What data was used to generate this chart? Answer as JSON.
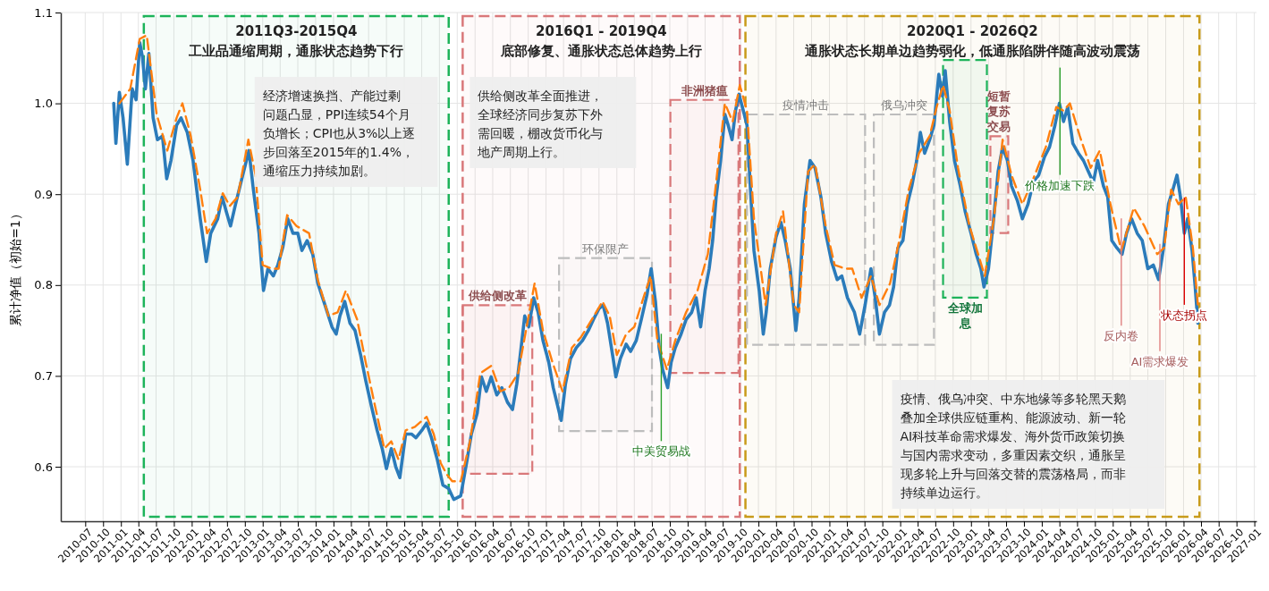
{
  "chart_data": {
    "type": "line",
    "ylabel": "累计净值（初始=1）",
    "xlim": [
      "2010-02-25",
      "2027-01-12"
    ],
    "ylim": [
      0.54,
      1.1
    ],
    "xticks": [
      "2010-07",
      "2010-10",
      "2011-01",
      "2011-04",
      "2011-07",
      "2011-10",
      "2012-01",
      "2012-04",
      "2012-07",
      "2012-10",
      "2013-01",
      "2013-04",
      "2013-07",
      "2013-10",
      "2014-01",
      "2014-04",
      "2014-07",
      "2014-10",
      "2015-01",
      "2015-04",
      "2015-07",
      "2015-10",
      "2016-01",
      "2016-04",
      "2016-07",
      "2016-10",
      "2017-01",
      "2017-04",
      "2017-07",
      "2017-10",
      "2018-01",
      "2018-04",
      "2018-07",
      "2018-10",
      "2019-01",
      "2019-04",
      "2019-07",
      "2019-10",
      "2020-01",
      "2020-04",
      "2020-07",
      "2020-10",
      "2021-01",
      "2021-04",
      "2021-07",
      "2021-10",
      "2022-01",
      "2022-04",
      "2022-07",
      "2022-10",
      "2023-01",
      "2023-04",
      "2023-07",
      "2023-10",
      "2024-01",
      "2024-04",
      "2024-07",
      "2024-10",
      "2025-01",
      "2025-04",
      "2025-07",
      "2025-10",
      "2026-01",
      "2026-04",
      "2026-07",
      "2026-10",
      "2027-01"
    ],
    "yticks": [
      0.6,
      0.7,
      0.8,
      0.9,
      {
        "value": 1,
        "label": "1.0"
      },
      1.1
    ],
    "grid": true,
    "series": [
      {
        "color": "#2b7bba",
        "line_style": "solid",
        "x": [
          "2010-11-25",
          "2010-12-06",
          "2010-12-24",
          "2011-01-12",
          "2011-02-03",
          "2011-02-28",
          "2011-03-20",
          "2011-04-08",
          "2011-04-22",
          "2011-05-07",
          "2011-05-25",
          "2011-06-16",
          "2011-07-08",
          "2011-08-03",
          "2011-08-25",
          "2011-09-16",
          "2011-10-15",
          "2011-11-07",
          "2011-12-09",
          "2012-01-08",
          "2012-02-14",
          "2012-03-16",
          "2012-04-08",
          "2012-05-14",
          "2012-06-06",
          "2012-06-27",
          "2012-07-19",
          "2012-08-14",
          "2012-09-20",
          "2012-10-22",
          "2012-11-14",
          "2012-12-13",
          "2013-01-05",
          "2013-01-28",
          "2013-02-25",
          "2013-03-20",
          "2013-04-15",
          "2013-05-10",
          "2013-06-06",
          "2013-07-01",
          "2013-07-22",
          "2013-08-18",
          "2013-09-16",
          "2013-10-12",
          "2013-11-18",
          "2013-12-24",
          "2014-01-15",
          "2014-02-03",
          "2014-02-28",
          "2014-03-27",
          "2014-04-22",
          "2014-05-21",
          "2014-06-16",
          "2014-07-15",
          "2014-08-14",
          "2014-09-09",
          "2014-10-01",
          "2014-10-26",
          "2014-11-18",
          "2014-12-09",
          "2015-01-08",
          "2015-02-07",
          "2015-03-02",
          "2015-04-01",
          "2015-04-26",
          "2015-05-21",
          "2015-06-20",
          "2015-07-19",
          "2015-08-18",
          "2015-09-13",
          "2015-10-19",
          "2015-11-18",
          "2015-12-13",
          "2016-01-12",
          "2016-02-03",
          "2016-02-28",
          "2016-03-24",
          "2016-04-22",
          "2016-05-18",
          "2016-06-16",
          "2016-07-12",
          "2016-08-03",
          "2016-08-21",
          "2016-09-13",
          "2016-10-04",
          "2016-10-29",
          "2016-11-21",
          "2016-12-16",
          "2017-01-15",
          "2017-02-07",
          "2017-03-02",
          "2017-03-20",
          "2017-04-11",
          "2017-05-07",
          "2017-06-06",
          "2017-07-08",
          "2017-08-07",
          "2017-09-02",
          "2017-10-01",
          "2017-10-22",
          "2017-11-14",
          "2017-12-13",
          "2017-12-27",
          "2018-01-19",
          "2018-02-18",
          "2018-03-13",
          "2018-04-11",
          "2018-05-07",
          "2018-06-06",
          "2018-06-27",
          "2018-07-19",
          "2018-08-07",
          "2018-08-25",
          "2018-09-20",
          "2018-10-08",
          "2018-10-29",
          "2018-11-28",
          "2018-12-24",
          "2019-01-22",
          "2019-02-14",
          "2019-03-09",
          "2019-04-01",
          "2019-04-22",
          "2019-05-10",
          "2019-05-28",
          "2019-06-20",
          "2019-07-12",
          "2019-07-29",
          "2019-08-18",
          "2019-09-05",
          "2019-09-23",
          "2019-10-15",
          "2019-11-03",
          "2019-11-21",
          "2019-12-09",
          "2020-01-05",
          "2020-01-26",
          "2020-02-10",
          "2020-03-02",
          "2020-04-01",
          "2020-04-26",
          "2020-05-18",
          "2020-06-13",
          "2020-07-12",
          "2020-07-29",
          "2020-08-25",
          "2020-09-23",
          "2020-10-19",
          "2020-11-18",
          "2020-12-13",
          "2021-01-12",
          "2021-02-10",
          "2021-03-06",
          "2021-04-04",
          "2021-05-10",
          "2021-06-06",
          "2021-07-04",
          "2021-08-03",
          "2021-08-25",
          "2021-09-16",
          "2021-10-12",
          "2021-11-07",
          "2021-11-28",
          "2021-12-20",
          "2022-01-15",
          "2022-02-07",
          "2022-03-02",
          "2022-03-27",
          "2022-04-15",
          "2022-05-07",
          "2022-06-02",
          "2022-06-24",
          "2022-07-19",
          "2022-08-07",
          "2022-08-21",
          "2022-09-13",
          "2022-10-08",
          "2022-11-07",
          "2022-12-02",
          "2023-01-01",
          "2023-01-28",
          "2023-02-21",
          "2023-03-09",
          "2023-04-01",
          "2023-04-26",
          "2023-05-21",
          "2023-06-13",
          "2023-07-08",
          "2023-07-29",
          "2023-08-28",
          "2023-09-23",
          "2023-10-22",
          "2023-11-18",
          "2023-12-16",
          "2024-01-15",
          "2024-02-10",
          "2024-03-09",
          "2024-04-01",
          "2024-04-22",
          "2024-05-14",
          "2024-06-09",
          "2024-07-08",
          "2024-08-03",
          "2024-08-28",
          "2024-09-23",
          "2024-10-15",
          "2024-11-14",
          "2024-12-06",
          "2024-12-27",
          "2025-01-22",
          "2025-02-18",
          "2025-03-13",
          "2025-04-08",
          "2025-05-07",
          "2025-06-02",
          "2025-07-01",
          "2025-07-29",
          "2025-08-25",
          "2025-09-20",
          "2025-10-15",
          "2025-11-07",
          "2025-11-28",
          "2025-12-16",
          "2026-01-05",
          "2026-01-22",
          "2026-02-14",
          "2026-03-02",
          "2026-03-16"
        ],
        "values": [
          1.0,
          0.956,
          1.012,
          0.984,
          0.933,
          1.016,
          1.004,
          1.067,
          1.051,
          1.016,
          1.055,
          0.984,
          0.96,
          0.964,
          0.917,
          0.937,
          0.976,
          0.984,
          0.968,
          0.937,
          0.873,
          0.826,
          0.857,
          0.873,
          0.897,
          0.881,
          0.865,
          0.889,
          0.921,
          0.948,
          0.905,
          0.857,
          0.794,
          0.818,
          0.81,
          0.822,
          0.842,
          0.873,
          0.857,
          0.857,
          0.838,
          0.849,
          0.834,
          0.802,
          0.778,
          0.754,
          0.746,
          0.766,
          0.782,
          0.758,
          0.75,
          0.723,
          0.695,
          0.667,
          0.64,
          0.62,
          0.598,
          0.62,
          0.6,
          0.588,
          0.636,
          0.636,
          0.632,
          0.64,
          0.648,
          0.632,
          0.608,
          0.58,
          0.576,
          0.564,
          0.568,
          0.604,
          0.636,
          0.659,
          0.699,
          0.683,
          0.699,
          0.679,
          0.687,
          0.671,
          0.663,
          0.691,
          0.723,
          0.766,
          0.754,
          0.786,
          0.77,
          0.739,
          0.715,
          0.687,
          0.667,
          0.651,
          0.691,
          0.719,
          0.731,
          0.739,
          0.75,
          0.762,
          0.774,
          0.778,
          0.758,
          0.719,
          0.699,
          0.719,
          0.735,
          0.727,
          0.739,
          0.762,
          0.79,
          0.818,
          0.782,
          0.731,
          0.707,
          0.687,
          0.715,
          0.731,
          0.746,
          0.762,
          0.77,
          0.786,
          0.754,
          0.794,
          0.818,
          0.849,
          0.897,
          0.937,
          0.988,
          0.976,
          0.96,
          0.992,
          1.01,
          0.992,
          0.976,
          0.905,
          0.838,
          0.794,
          0.746,
          0.77,
          0.818,
          0.853,
          0.869,
          0.849,
          0.818,
          0.75,
          0.786,
          0.889,
          0.937,
          0.929,
          0.897,
          0.857,
          0.826,
          0.806,
          0.81,
          0.786,
          0.77,
          0.746,
          0.778,
          0.818,
          0.786,
          0.746,
          0.77,
          0.778,
          0.798,
          0.841,
          0.849,
          0.889,
          0.909,
          0.937,
          0.968,
          0.945,
          0.96,
          0.976,
          1.032,
          1.008,
          1.036,
          0.98,
          0.937,
          0.909,
          0.881,
          0.857,
          0.834,
          0.818,
          0.798,
          0.818,
          0.869,
          0.925,
          0.952,
          0.937,
          0.909,
          0.893,
          0.873,
          0.889,
          0.913,
          0.921,
          0.941,
          0.952,
          0.976,
          1.0,
          0.98,
          0.996,
          0.956,
          0.945,
          0.937,
          0.925,
          0.913,
          0.937,
          0.909,
          0.897,
          0.849,
          0.841,
          0.834,
          0.857,
          0.873,
          0.857,
          0.849,
          0.818,
          0.822,
          0.806,
          0.841,
          0.889,
          0.905,
          0.921,
          0.897,
          0.857,
          0.873,
          0.838,
          0.798,
          0.758
        ]
      },
      {
        "color": "#ff7f0e",
        "line_style": "dashed",
        "x": [
          "2010-12-24",
          "2011-02-18",
          "2011-04-08",
          "2011-05-14",
          "2011-06-06",
          "2011-07-04",
          "2011-08-28",
          "2011-10-15",
          "2011-11-14",
          "2011-12-27",
          "2012-02-14",
          "2012-03-20",
          "2012-05-03",
          "2012-06-09",
          "2012-07-15",
          "2012-08-25",
          "2012-10-19",
          "2012-11-25",
          "2013-01-01",
          "2013-02-18",
          "2013-03-24",
          "2013-05-07",
          "2013-06-24",
          "2013-08-28",
          "2013-10-12",
          "2013-12-06",
          "2014-01-22",
          "2014-03-06",
          "2014-05-03",
          "2014-06-16",
          "2014-08-03",
          "2014-09-20",
          "2014-10-26",
          "2014-12-02",
          "2015-01-08",
          "2015-02-25",
          "2015-04-26",
          "2015-06-02",
          "2015-07-08",
          "2015-08-07",
          "2015-09-05",
          "2015-10-19",
          "2015-12-06",
          "2016-01-28",
          "2016-03-24",
          "2016-05-10",
          "2016-06-24",
          "2016-08-10",
          "2016-09-16",
          "2016-11-03",
          "2016-12-16",
          "2017-02-03",
          "2017-03-27",
          "2017-05-14",
          "2017-07-01",
          "2017-08-25",
          "2017-10-19",
          "2017-11-25",
          "2018-01-01",
          "2018-02-18",
          "2018-04-01",
          "2018-05-18",
          "2018-06-24",
          "2018-07-29",
          "2018-09-16",
          "2018-10-29",
          "2018-12-24",
          "2019-02-21",
          "2019-04-15",
          "2019-05-28",
          "2019-07-12",
          "2019-08-21",
          "2019-09-27",
          "2019-11-03",
          "2019-12-09",
          "2020-02-07",
          "2020-04-01",
          "2020-05-07",
          "2020-07-01",
          "2020-07-29",
          "2020-09-13",
          "2020-10-19",
          "2020-12-13",
          "2021-01-28",
          "2021-03-24",
          "2021-04-29",
          "2021-06-16",
          "2021-08-03",
          "2021-09-16",
          "2021-11-10",
          "2021-12-27",
          "2022-02-14",
          "2022-04-08",
          "2022-06-02",
          "2022-07-08",
          "2022-08-10",
          "2022-09-13",
          "2022-10-26",
          "2022-12-24",
          "2023-02-07",
          "2023-03-13",
          "2023-04-29",
          "2023-06-13",
          "2023-07-29",
          "2023-09-23",
          "2023-11-18",
          "2024-01-22",
          "2024-03-16",
          "2024-04-22",
          "2024-05-25",
          "2024-07-15",
          "2024-09-09",
          "2024-10-26",
          "2024-12-20",
          "2025-02-14",
          "2025-04-19",
          "2025-06-13",
          "2025-08-18",
          "2025-09-23",
          "2025-10-29",
          "2025-12-06",
          "2026-01-12",
          "2026-02-18",
          "2026-03-16"
        ],
        "values": [
          1.0,
          1.016,
          1.071,
          1.075,
          1.036,
          0.988,
          0.948,
          0.984,
          1.0,
          0.964,
          0.905,
          0.857,
          0.873,
          0.901,
          0.887,
          0.897,
          0.96,
          0.921,
          0.822,
          0.818,
          0.818,
          0.877,
          0.865,
          0.857,
          0.806,
          0.766,
          0.77,
          0.794,
          0.762,
          0.715,
          0.667,
          0.62,
          0.628,
          0.608,
          0.64,
          0.644,
          0.655,
          0.636,
          0.604,
          0.592,
          0.584,
          0.584,
          0.628,
          0.703,
          0.711,
          0.683,
          0.687,
          0.703,
          0.746,
          0.802,
          0.75,
          0.715,
          0.683,
          0.731,
          0.743,
          0.762,
          0.782,
          0.766,
          0.723,
          0.746,
          0.754,
          0.786,
          0.81,
          0.739,
          0.707,
          0.739,
          0.77,
          0.794,
          0.834,
          0.913,
          1.0,
          0.98,
          1.02,
          0.992,
          0.873,
          0.778,
          0.857,
          0.881,
          0.778,
          0.77,
          0.925,
          0.933,
          0.865,
          0.822,
          0.818,
          0.818,
          0.786,
          0.81,
          0.778,
          0.802,
          0.849,
          0.905,
          0.945,
          0.964,
          0.996,
          1.02,
          0.992,
          0.929,
          0.865,
          0.834,
          0.81,
          0.873,
          0.96,
          0.921,
          0.889,
          0.917,
          0.952,
          0.996,
          0.992,
          1.0,
          0.964,
          0.929,
          0.948,
          0.889,
          0.838,
          0.885,
          0.865,
          0.834,
          0.841,
          0.905,
          0.889,
          0.897,
          0.841,
          0.778
        ]
      }
    ],
    "bands": [
      {
        "axis": "x",
        "from": "2011-04-29",
        "to": "2015-08-18",
        "label": "2011Q3-2015Q4\n工业品通缩周期，通胀状态趋势下行",
        "color": "#1db35a"
      },
      {
        "axis": "x",
        "from": "2015-10-29",
        "to": "2019-09-27",
        "label": "2016Q1 - 2019Q4\n底部修复、通胀状态总体趋势上行",
        "color": "#d9787a"
      },
      {
        "axis": "x",
        "from": "2019-10-26",
        "to": "2026-03-24",
        "label": "2020Q1 - 2026Q2\n通胀状态长期单边趋势弱化，低通胀陷阱伴随高波动震荡",
        "color": "#c89b1a"
      },
      {
        "axis": "x",
        "from": "2015-10-29",
        "to": "2016-10-22",
        "label": "供给侧改革",
        "color": "#d9787a"
      },
      {
        "axis": "x",
        "from": "2017-03-09",
        "to": "2018-07-01",
        "label": "环保限产",
        "color": "#bdbdbd"
      },
      {
        "axis": "x",
        "from": "2018-10-04",
        "to": "2019-09-20",
        "label": "非洲猪瘟",
        "color": "#d9787a"
      },
      {
        "axis": "x",
        "from": "2019-11-03",
        "to": "2021-07-04",
        "label": "疫情冲击",
        "color": "#bdbdbd"
      },
      {
        "axis": "x",
        "from": "2021-08-18",
        "to": "2022-06-24",
        "label": "俄乌冲突",
        "color": "#bdbdbd"
      },
      {
        "axis": "x",
        "from": "2022-08-10",
        "to": "2023-03-24",
        "label": "全球加息",
        "color": "#1db35a"
      },
      {
        "axis": "x",
        "from": "2023-04-11",
        "to": "2023-07-12",
        "label": "短暂复苏交易",
        "color": "#d9787a"
      }
    ],
    "ref_lines": [
      {
        "axis": "x",
        "value": "2018-08-18",
        "label": "中美贸易战",
        "color": "#2ca02c"
      },
      {
        "axis": "x",
        "value": "2024-04-04",
        "label": "价格加速下跌",
        "color": "#2ca02c"
      },
      {
        "axis": "x",
        "value": "2025-02-14",
        "label": "反内卷",
        "color": "#e08080"
      },
      {
        "axis": "x",
        "value": "2025-09-01",
        "label": "AI需求爆发",
        "color": "#e08080"
      },
      {
        "axis": "x",
        "value": "2026-01-05",
        "label": "状态拐点",
        "color": "#dd0000"
      }
    ],
    "annotations": [
      "经济增速换挡、产能过剩问题凸显，PPI连续54个月负增长；CPI也从3%以上逐步回落至2015年的1.4%，通缩压力持续加剧。",
      "供给侧改革全面推进，全球经济同步复苏下外需回暖，棚改货币化与地产周期上行。",
      "疫情、俄乌冲突、中东地缘等多轮黑天鹅叠加全球供应链重构、能源波动、新一轮AI科技革命需求爆发、海外货币政策切换与国内需求变动，多重因素交织，通胀呈现多轮上升与回落交替的震荡格局，而非持续单边运行。"
    ]
  }
}
